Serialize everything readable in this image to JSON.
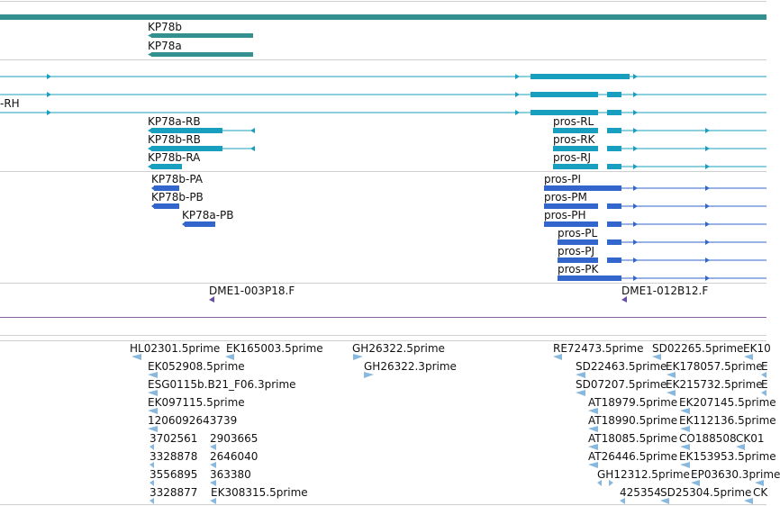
{
  "colors": {
    "gene": "#348f8f",
    "transcript": "#189fbf",
    "protein": "#3366cc",
    "clone": "#6a4fa0",
    "est": "#88b8dd",
    "purple_line": "#8a5fa0",
    "divider": "#cfcfcf"
  },
  "tracks": {
    "genes": {
      "name": "gene-track",
      "labels": [
        "KP78b",
        "KP78a"
      ]
    },
    "transcripts": {
      "name": "transcript-track",
      "labels": [
        "-RH",
        "KP78a-RB",
        "KP78b-RB",
        "KP78b-RA",
        "pros-RL",
        "pros-RK",
        "pros-RJ"
      ]
    },
    "proteins": {
      "name": "protein-track",
      "labels": [
        "KP78b-PA",
        "KP78b-PB",
        "KP78a-PB",
        "pros-PI",
        "pros-PM",
        "pros-PH",
        "pros-PL",
        "pros-PJ",
        "pros-PK"
      ]
    },
    "clones": {
      "name": "clone-track",
      "labels": [
        "DME1-003P18.F",
        "DME1-012B12.F"
      ]
    },
    "ests": {
      "name": "est-track",
      "labels": [
        "HL02301.5prime",
        "EK165003.5prime",
        "GH26322.5prime",
        "RE72473.5prime",
        "SD02265.5prime",
        "EK10",
        "EK052908.5prime",
        "GH26322.3prime",
        "SD22463.5prime",
        "EK178057.5prime",
        "E",
        "ESG0115b.B21_F06.3prime",
        "SD07207.5prime",
        "EK215732.5prime",
        "E",
        "EK097115.5prime",
        "AT18979.5prime",
        "EK207145.5prime",
        "1206092643739",
        "AT18990.5prime",
        "EK112136.5prime",
        "3702561",
        "2903665",
        "AT18085.5prime",
        "CO188508",
        "CK01",
        "3328878",
        "2646040",
        "AT26446.5prime",
        "EK153953.5prime",
        "3556895",
        "363380",
        "GH12312.5prime",
        "EP03630.3prime",
        "3328877",
        "EK308315.5prime",
        "425354",
        "SD25304.5prime",
        "CK"
      ]
    }
  }
}
